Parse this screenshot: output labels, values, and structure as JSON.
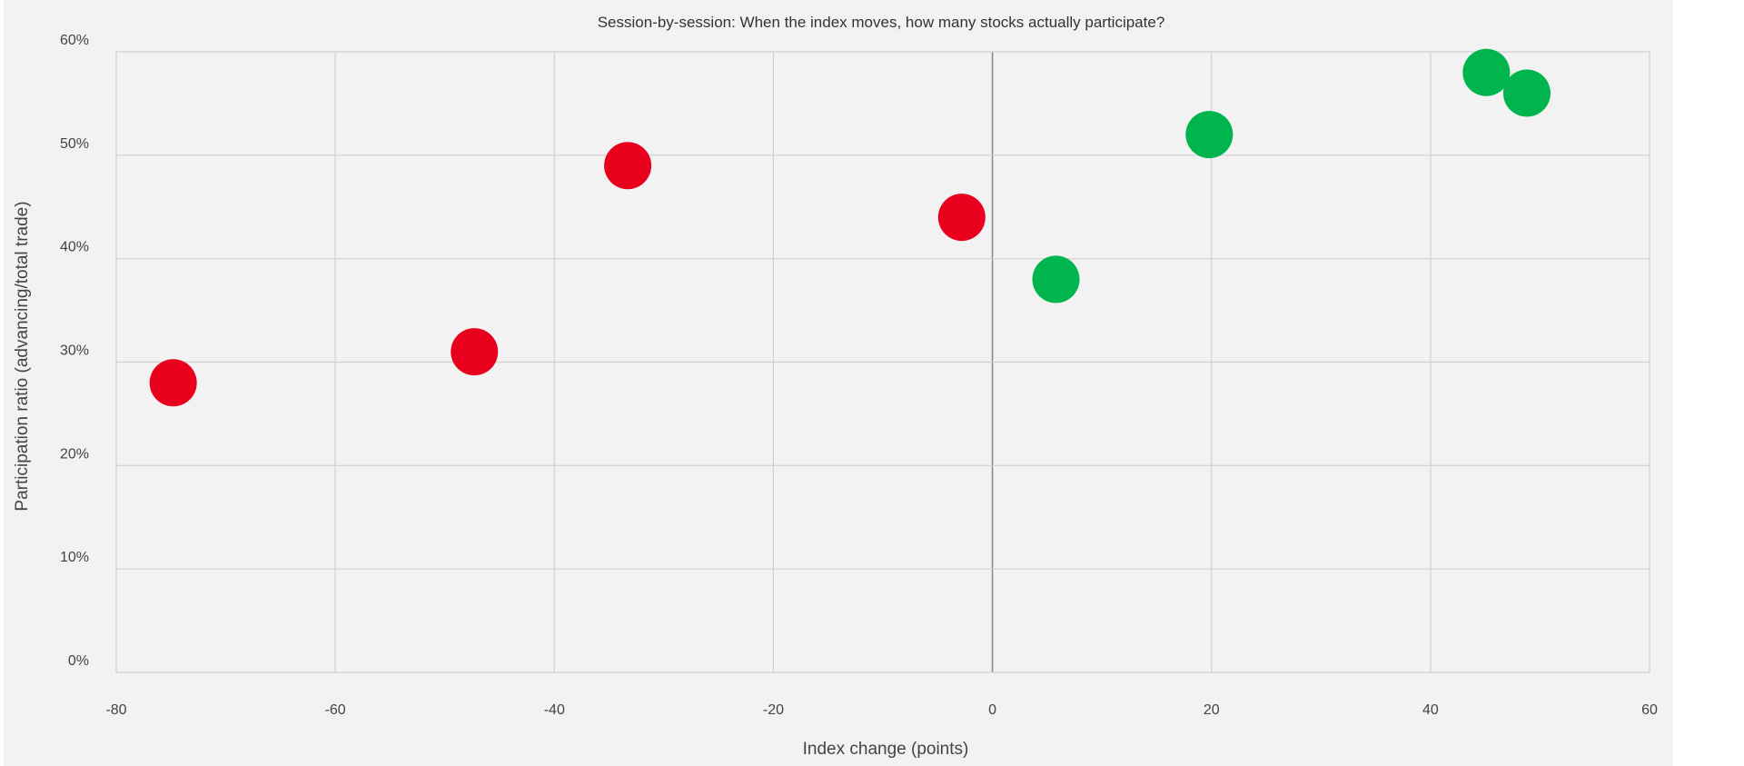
{
  "chart_data": {
    "type": "scatter",
    "title": "Session-by-session: When the index moves, how many stocks actually participate?",
    "xlabel": "Index change (points)",
    "ylabel": "Participation ratio (advancing/total trade)",
    "xlim": [
      -80,
      60
    ],
    "ylim": [
      0,
      60
    ],
    "x_ticks": [
      "-80",
      "-60",
      "-40",
      "-20",
      "0",
      "20",
      "40",
      "60"
    ],
    "y_ticks": [
      "0%",
      "10%",
      "20%",
      "30%",
      "40%",
      "50%",
      "60%"
    ],
    "grid": true,
    "legend": "none",
    "colors": {
      "down": "#e8001c",
      "up": "#00b44e",
      "grid": "#cfcfcf",
      "zero_line": "#8a8a8a"
    },
    "points": [
      {
        "x": -74.8,
        "y": 28,
        "direction": "down"
      },
      {
        "x": -47.3,
        "y": 31,
        "direction": "down"
      },
      {
        "x": -33.3,
        "y": 49,
        "direction": "down"
      },
      {
        "x": -2.8,
        "y": 44,
        "direction": "down"
      },
      {
        "x": 5.8,
        "y": 38,
        "direction": "up"
      },
      {
        "x": 19.8,
        "y": 52,
        "direction": "up"
      },
      {
        "x": 45.1,
        "y": 58,
        "direction": "up"
      },
      {
        "x": 48.8,
        "y": 56,
        "direction": "up"
      }
    ]
  }
}
